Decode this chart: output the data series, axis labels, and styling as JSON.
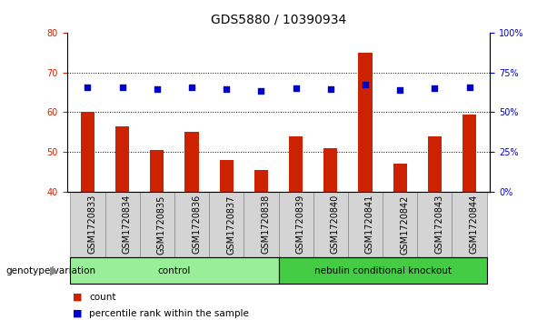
{
  "title": "GDS5880 / 10390934",
  "samples": [
    "GSM1720833",
    "GSM1720834",
    "GSM1720835",
    "GSM1720836",
    "GSM1720837",
    "GSM1720838",
    "GSM1720839",
    "GSM1720840",
    "GSM1720841",
    "GSM1720842",
    "GSM1720843",
    "GSM1720844"
  ],
  "counts": [
    60,
    56.5,
    50.5,
    55,
    48,
    45.5,
    54,
    51,
    75,
    47,
    54,
    59.5
  ],
  "percentiles": [
    66,
    65.5,
    64.5,
    65.5,
    64.5,
    63.5,
    65,
    64.5,
    67.5,
    64,
    65,
    65.5
  ],
  "ylim_left": [
    40,
    80
  ],
  "ylim_right": [
    0,
    100
  ],
  "yticks_left": [
    40,
    50,
    60,
    70,
    80
  ],
  "yticks_right": [
    0,
    25,
    50,
    75,
    100
  ],
  "ytick_labels_right": [
    "0%",
    "25%",
    "50%",
    "75%",
    "100%"
  ],
  "grid_values": [
    50,
    60,
    70
  ],
  "bar_color": "#cc2200",
  "dot_color": "#0000cc",
  "bar_bottom": 40,
  "bar_width": 0.4,
  "groups": [
    {
      "label": "control",
      "start": 0,
      "end": 5,
      "color": "#99ee99"
    },
    {
      "label": "nebulin conditional knockout",
      "start": 6,
      "end": 11,
      "color": "#44cc44"
    }
  ],
  "group_row_label": "genotype/variation",
  "legend_count_label": "count",
  "legend_percentile_label": "percentile rank within the sample",
  "title_fontsize": 10,
  "tick_label_fontsize": 7,
  "sample_cell_color": "#d4d4d4",
  "sample_cell_edge": "#888888"
}
